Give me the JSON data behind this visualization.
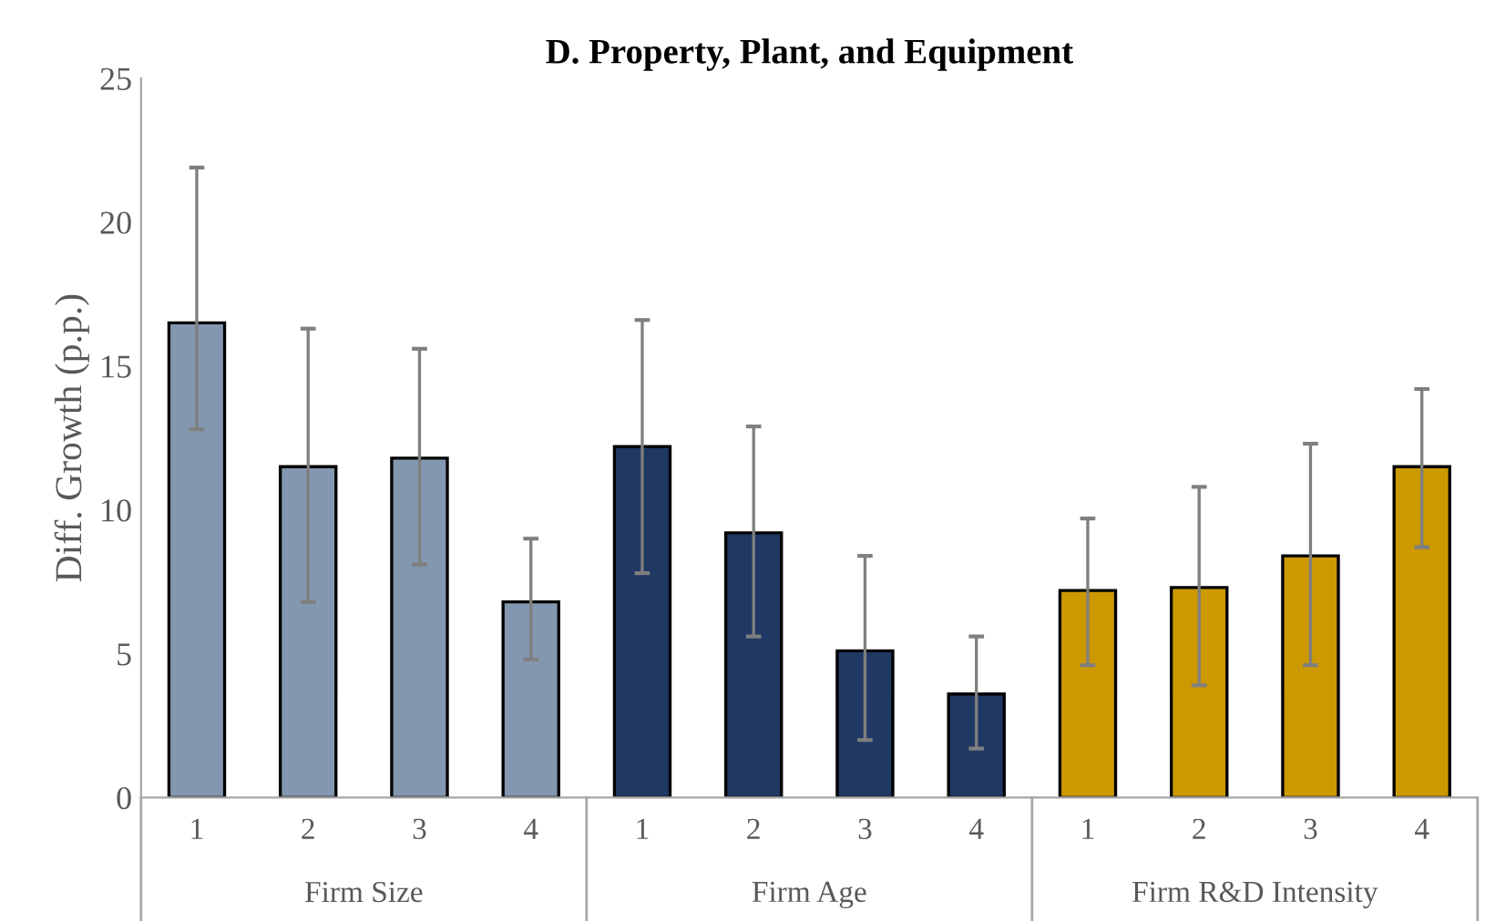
{
  "chart_data": {
    "type": "bar",
    "title": "D. Property, Plant, and Equipment",
    "ylabel": "Diff. Growth (p.p.)",
    "categories": [
      "1",
      "2",
      "3",
      "4",
      "1",
      "2",
      "3",
      "4",
      "1",
      "2",
      "3",
      "4"
    ],
    "values": [
      16.5,
      11.5,
      11.8,
      6.8,
      12.2,
      9.2,
      5.1,
      3.6,
      7.2,
      7.3,
      8.4,
      11.5
    ],
    "colors": [
      "#8497b0",
      "#8497b0",
      "#8497b0",
      "#8497b0",
      "#203864",
      "#203864",
      "#203864",
      "#203864",
      "#cc9900",
      "#cc9900",
      "#cc9900",
      "#cc9900"
    ],
    "errors": [
      [
        12.8,
        21.9
      ],
      [
        6.8,
        16.3
      ],
      [
        8.1,
        15.6
      ],
      [
        4.8,
        9.0
      ],
      [
        7.8,
        16.6
      ],
      [
        5.6,
        12.9
      ],
      [
        2.0,
        8.4
      ],
      [
        1.7,
        5.6
      ],
      [
        4.6,
        9.7
      ],
      [
        3.9,
        10.8
      ],
      [
        4.6,
        12.3
      ],
      [
        8.7,
        14.2
      ]
    ],
    "annotations": [
      "Firm Size",
      "Firm Age",
      "Firm R&D Intensity"
    ],
    "ylim": [
      0,
      25
    ],
    "yticks": [
      0,
      5,
      10,
      15,
      20,
      25
    ],
    "grid": false,
    "legend": false
  }
}
